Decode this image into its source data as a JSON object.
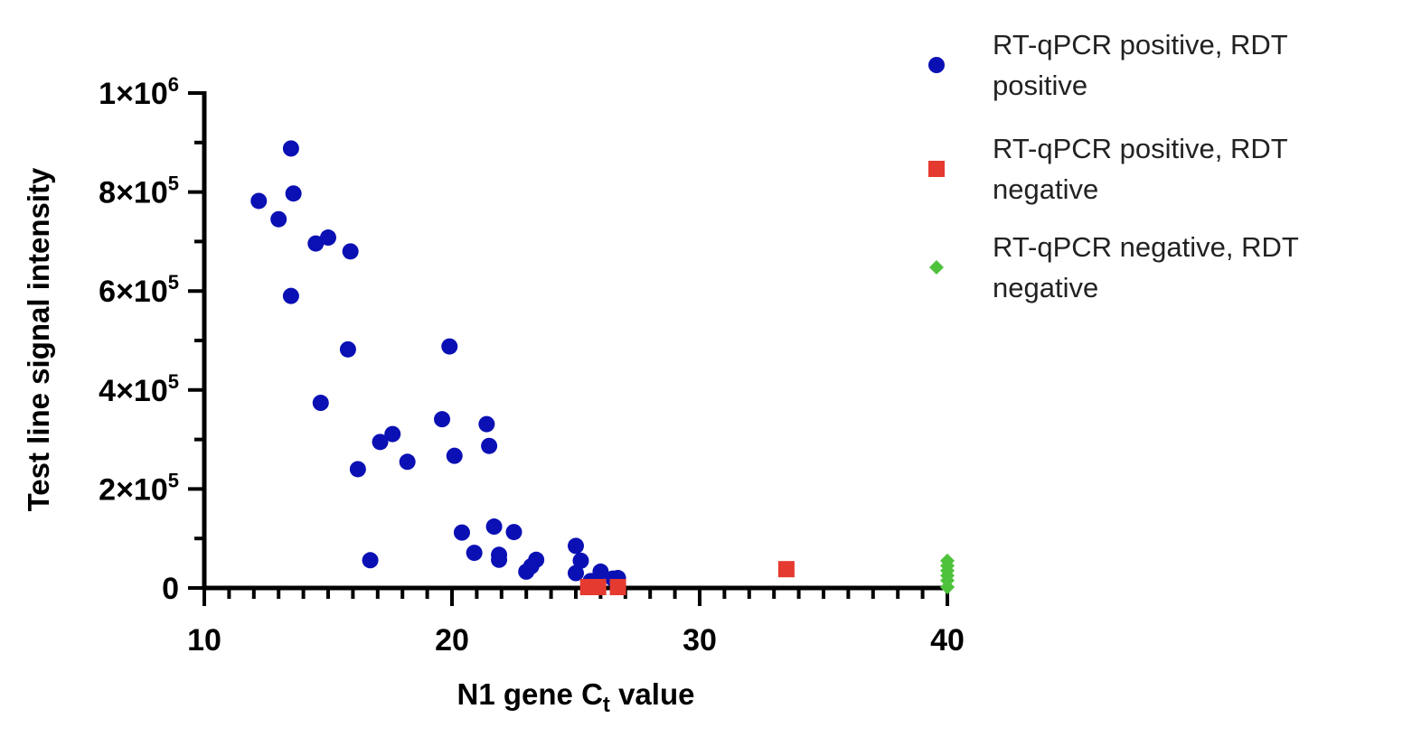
{
  "chart_data": {
    "type": "scatter",
    "xlabel": {
      "main": "N1 gene C",
      "sub": "t",
      "rest": " value"
    },
    "ylabel": "Test line signal intensity",
    "xlim": [
      10,
      40
    ],
    "ylim": [
      0,
      1000000
    ],
    "x_ticks": [
      {
        "value": 10,
        "label": "10"
      },
      {
        "value": 20,
        "label": "20"
      },
      {
        "value": 30,
        "label": "30"
      },
      {
        "value": 40,
        "label": "40"
      }
    ],
    "y_ticks": [
      {
        "value": 0,
        "base": "0",
        "exp": ""
      },
      {
        "value": 200000,
        "base": "2×10",
        "exp": "5"
      },
      {
        "value": 400000,
        "base": "4×10",
        "exp": "5"
      },
      {
        "value": 600000,
        "base": "6×10",
        "exp": "5"
      },
      {
        "value": 800000,
        "base": "8×10",
        "exp": "5"
      },
      {
        "value": 1000000,
        "base": "1×10",
        "exp": "6"
      }
    ],
    "grid": false,
    "legend_position": "top-right",
    "series": [
      {
        "name": "RT-qPCR positive, RDT positive",
        "legend_lines": [
          "RT-qPCR positive, RDT",
          "positive"
        ],
        "marker": "circle",
        "color": "#0a10b4",
        "points": [
          [
            12.2,
            782000
          ],
          [
            13.0,
            745000
          ],
          [
            13.5,
            888000
          ],
          [
            13.6,
            797000
          ],
          [
            13.5,
            590000
          ],
          [
            14.5,
            696000
          ],
          [
            15.0,
            708000
          ],
          [
            15.9,
            680000
          ],
          [
            15.8,
            482000
          ],
          [
            14.7,
            374000
          ],
          [
            16.2,
            240000
          ],
          [
            16.7,
            56000
          ],
          [
            17.1,
            295000
          ],
          [
            17.6,
            311000
          ],
          [
            18.2,
            255000
          ],
          [
            19.6,
            341000
          ],
          [
            19.9,
            488000
          ],
          [
            20.1,
            267000
          ],
          [
            20.4,
            112000
          ],
          [
            20.9,
            71000
          ],
          [
            21.4,
            331000
          ],
          [
            21.5,
            287000
          ],
          [
            21.7,
            124000
          ],
          [
            21.9,
            67000
          ],
          [
            21.9,
            57000
          ],
          [
            22.5,
            113000
          ],
          [
            23.0,
            33000
          ],
          [
            23.2,
            44000
          ],
          [
            23.4,
            57000
          ],
          [
            25.0,
            85000
          ],
          [
            25.2,
            55000
          ],
          [
            25.0,
            30000
          ],
          [
            25.6,
            14000
          ],
          [
            26.0,
            33000
          ],
          [
            26.5,
            19000
          ],
          [
            26.7,
            20000
          ]
        ]
      },
      {
        "name": "RT-qPCR positive, RDT negative",
        "legend_lines": [
          "RT-qPCR positive, RDT",
          "negative"
        ],
        "marker": "square",
        "color": "#e53a30",
        "points": [
          [
            25.5,
            0
          ],
          [
            25.9,
            0
          ],
          [
            26.7,
            0
          ],
          [
            33.5,
            38000
          ]
        ]
      },
      {
        "name": "RT-qPCR negative, RDT negative",
        "legend_lines": [
          "RT-qPCR negative, RDT",
          "negative"
        ],
        "marker": "diamond",
        "color": "#4fc23c",
        "points": [
          [
            40,
            55000
          ],
          [
            40,
            45000
          ],
          [
            40,
            35000
          ],
          [
            40,
            25000
          ],
          [
            40,
            15000
          ],
          [
            40,
            8000
          ],
          [
            40,
            2000
          ]
        ]
      }
    ]
  }
}
